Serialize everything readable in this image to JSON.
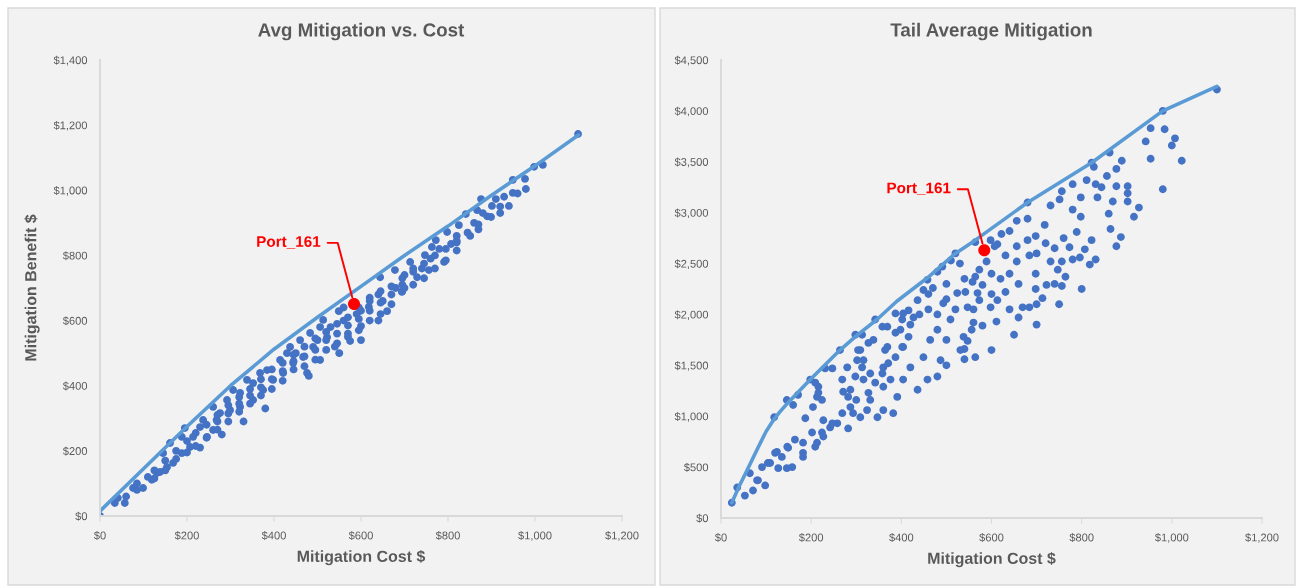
{
  "chart_data": [
    {
      "type": "scatter",
      "title": "Avg Mitigation vs. Cost",
      "xlabel": "Mitigation Cost $",
      "ylabel": "Mitigation Benefit $",
      "xlim": [
        0,
        1200
      ],
      "xticks": [
        {
          "value": 0,
          "label": "$0"
        },
        {
          "value": 200,
          "label": "$200"
        },
        {
          "value": 400,
          "label": "$400"
        },
        {
          "value": 600,
          "label": "$600"
        },
        {
          "value": 800,
          "label": "$800"
        },
        {
          "value": 1000,
          "label": "$1,000"
        },
        {
          "value": 1200,
          "label": "$1,200"
        }
      ],
      "ylim": [
        0,
        1400
      ],
      "yticks": [
        {
          "value": 0,
          "label": "$0"
        },
        {
          "value": 200,
          "label": "$200"
        },
        {
          "value": 400,
          "label": "$400"
        },
        {
          "value": 600,
          "label": "$600"
        },
        {
          "value": 800,
          "label": "$800"
        },
        {
          "value": 1000,
          "label": "$1,000"
        },
        {
          "value": 1200,
          "label": "$1,200"
        },
        {
          "value": 1400,
          "label": "$1,400"
        }
      ],
      "marker": "circle",
      "series": [
        {
          "type": "scatter",
          "color": "#4472c4",
          "x": [
            0,
            34,
            41,
            57,
            76,
            99,
            119,
            131,
            138,
            145,
            154,
            161,
            168,
            188,
            188,
            195,
            207,
            214,
            230,
            237,
            246,
            260,
            260,
            268,
            276,
            292,
            299,
            306,
            322,
            322,
            338,
            352,
            352,
            368,
            375,
            384,
            398,
            414,
            421,
            430,
            437,
            444,
            460,
            467,
            476,
            483,
            490,
            506,
            506,
            513,
            522,
            549,
            575,
            600,
            618,
            644,
            660,
            678,
            694,
            713,
            729,
            747,
            756,
            763,
            772,
            791,
            798,
            807,
            825,
            841,
            851,
            867,
            876,
            899,
            901,
            910,
            929,
            940,
            949,
            949,
            977,
            979,
            998,
            1018,
            1099,
            420,
            450,
            470,
            500,
            530,
            540,
            560,
            570,
            600,
            620,
            640,
            650,
            680,
            700,
            720,
            740,
            780,
            820,
            860,
            880,
            600,
            550,
            480,
            380,
            330,
            280,
            230,
            640,
            700,
            760,
            820,
            560,
            590,
            620,
            60,
            85,
            85,
            110,
            125,
            125,
            150,
            150,
            175,
            175,
            200,
            200,
            220,
            220,
            245,
            245,
            270,
            270,
            270,
            295,
            295,
            295,
            320,
            320,
            320,
            345,
            345,
            345,
            370,
            370,
            370,
            395,
            395,
            395,
            420,
            420,
            445,
            445,
            445,
            470,
            470,
            495,
            495,
            495,
            520,
            520,
            520,
            545,
            545,
            545,
            570,
            570,
            570,
            595,
            595,
            595,
            620,
            620,
            645,
            645,
            645,
            670,
            670,
            670,
            695,
            695,
            695,
            720,
            720,
            745,
            745,
            770,
            770,
            795,
            795,
            820,
            820,
            845,
            870,
            870,
            890,
            920,
            920,
            960
          ],
          "values": [
            0,
            40,
            55,
            40,
            86,
            86,
            111,
            132,
            135,
            193,
            150,
            224,
            163,
            193,
            243,
            270,
            212,
            243,
            273,
            295,
            243,
            264,
            335,
            295,
            316,
            356,
            325,
            387,
            335,
            378,
            418,
            408,
            356,
            439,
            387,
            448,
            418,
            479,
            439,
            500,
            519,
            470,
            540,
            488,
            439,
            562,
            519,
            580,
            479,
            602,
            549,
            629,
            537,
            583,
            642,
            733,
            629,
            755,
            688,
            780,
            733,
            801,
            755,
            826,
            847,
            780,
            872,
            835,
            893,
            927,
            860,
            939,
            973,
            918,
            952,
            973,
            980,
            952,
            1032,
            992,
            1035,
            1004,
            1072,
            1078,
            1173,
            470,
            500,
            520,
            540,
            580,
            520,
            600,
            560,
            630,
            600,
            680,
            660,
            700,
            740,
            760,
            760,
            820,
            860,
            900,
            930,
            540,
            500,
            430,
            330,
            290,
            250,
            210,
            600,
            700,
            790,
            840,
            640,
            620,
            670,
            60,
            80,
            100,
            120,
            140,
            115,
            170,
            140,
            200,
            175,
            230,
            195,
            255,
            215,
            280,
            240,
            310,
            265,
            290,
            340,
            290,
            315,
            365,
            320,
            345,
            390,
            345,
            370,
            420,
            370,
            395,
            450,
            390,
            420,
            415,
            445,
            495,
            450,
            475,
            460,
            490,
            545,
            480,
            510,
            565,
            510,
            540,
            590,
            530,
            560,
            610,
            550,
            585,
            640,
            570,
            605,
            660,
            630,
            690,
            620,
            655,
            705,
            650,
            680,
            730,
            690,
            710,
            750,
            710,
            775,
            730,
            800,
            760,
            820,
            785,
            845,
            815,
            870,
            895,
            880,
            920,
            950,
            930,
            990
          ]
        },
        {
          "type": "line",
          "color": "#5b9bd5",
          "marker": "none",
          "line_style": "solid",
          "x": [
            0,
            100,
            200,
            300,
            400,
            500,
            600,
            700,
            800,
            900,
            1000,
            1100
          ],
          "values": [
            15,
            145,
            275,
            400,
            512,
            610,
            705,
            800,
            890,
            985,
            1075,
            1170
          ]
        },
        {
          "type": "scatter",
          "color": "#ff0000",
          "x": [
            584
          ],
          "values": [
            651
          ]
        }
      ],
      "annotations": [
        {
          "text": "Port_161",
          "x": 584,
          "y": 651
        }
      ]
    },
    {
      "type": "scatter",
      "title": "Tail Average Mitigation",
      "xlabel": "Mitigation Cost $",
      "xlim": [
        0,
        1200
      ],
      "xticks": [
        {
          "value": 0,
          "label": "$0"
        },
        {
          "value": 200,
          "label": "$200"
        },
        {
          "value": 400,
          "label": "$400"
        },
        {
          "value": 600,
          "label": "$600"
        },
        {
          "value": 800,
          "label": "$800"
        },
        {
          "value": 1000,
          "label": "$1,000"
        },
        {
          "value": 1200,
          "label": "$1,200"
        }
      ],
      "ylim": [
        0,
        4500
      ],
      "yticks": [
        {
          "value": 0,
          "label": "$0"
        },
        {
          "value": 500,
          "label": "$500"
        },
        {
          "value": 1000,
          "label": "$1,000"
        },
        {
          "value": 1500,
          "label": "$1,500"
        },
        {
          "value": 2000,
          "label": "$2,000"
        },
        {
          "value": 2500,
          "label": "$2,500"
        },
        {
          "value": 3000,
          "label": "$3,000"
        },
        {
          "value": 3500,
          "label": "$3,500"
        },
        {
          "value": 4000,
          "label": "$4,000"
        },
        {
          "value": 4500,
          "label": "$4,500"
        }
      ],
      "marker": "circle",
      "series": [
        {
          "type": "scatter",
          "color": "#4472c4",
          "x": [
            980,
            1022,
            1007,
            1000,
            953,
            942,
            953,
            984,
            927,
            916,
            902,
            902,
            902,
            887,
            877,
            864,
            860,
            869,
            877,
            877,
            889,
            862,
            856,
            844,
            835,
            831,
            827,
            831,
            818,
            822,
            807,
            796,
            780,
            764,
            756,
            773,
            789,
            798,
            780,
            798,
            780,
            811,
            731,
            756,
            751,
            718,
            698,
            680,
            680,
            656,
            640,
            622,
            613,
            607,
            598,
            713,
            698,
            722,
            747,
            731,
            756,
            684,
            660,
            669,
            640,
            631,
            613,
            598,
            611,
            580,
            556,
            547,
            573,
            580,
            564,
            540,
            656,
            684,
            656,
            698,
            631,
            589,
            573,
            1100,
            980,
            680,
            564,
            822,
            24,
            36,
            53,
            71,
            64,
            80,
            98,
            91,
            104,
            127,
            146,
            158,
            120,
            135,
            149,
            164,
            182,
            182,
            187,
            118,
            146,
            160,
            171,
            198,
            216,
            213,
            224,
            204,
            227,
            202,
            213,
            227,
            242,
            258,
            247,
            264,
            280,
            269,
            271,
            287,
            298,
            313,
            309,
            302,
            316,
            287,
            293,
            282,
            309,
            324,
            331,
            316,
            331,
            338,
            342,
            369,
            369,
            360,
            360,
            376,
            391,
            382,
            360,
            347,
            404,
            420,
            404,
            398,
            404,
            427,
            436,
            449,
            458,
            464,
            449,
            480,
            487,
            480,
            458,
            436,
            493,
            509,
            524,
            547,
            538,
            531,
            560,
            569,
            564,
            520,
            491,
            558,
            542,
            480,
            500,
            530,
            510,
            470,
            500,
            540,
            600,
            650,
            700,
            750,
            800,
            82,
            109,
            124,
            147,
            182,
            209,
            224,
            247,
            269,
            216,
            209,
            231,
            282,
            300,
            327,
            342,
            358,
            371,
            387,
            402,
            416,
            298,
            313,
            304,
            327,
            358,
            387,
            402,
            364,
            387,
            416,
            440,
            460,
            480,
            500,
            520,
            540,
            460,
            420,
            500,
            560,
            600,
            620,
            600,
            640,
            660,
            700,
            720,
            740,
            760,
            700,
            740
          ],
          "values": [
            3230,
            3510,
            3730,
            3660,
            3830,
            3700,
            3530,
            3820,
            3050,
            2960,
            3260,
            3190,
            3110,
            2760,
            2670,
            2840,
            2990,
            3110,
            3260,
            3430,
            3510,
            3590,
            3360,
            3250,
            3150,
            3280,
            3450,
            2540,
            2490,
            2730,
            2640,
            2560,
            2540,
            2370,
            2280,
            2660,
            2810,
            2960,
            3030,
            3150,
            3280,
            3320,
            3070,
            3210,
            3130,
            2880,
            2770,
            2730,
            2940,
            2920,
            2820,
            2790,
            2690,
            2670,
            2730,
            2160,
            2250,
            2290,
            2440,
            2520,
            2520,
            2070,
            1970,
            2070,
            2050,
            2220,
            2140,
            2070,
            1930,
            1890,
            1850,
            1740,
            2140,
            2290,
            2370,
            1660,
            2520,
            2580,
            2670,
            2400,
            2580,
            2520,
            2440,
            4210,
            4000,
            3100,
            2710,
            3490,
            150,
            300,
            220,
            270,
            440,
            370,
            320,
            500,
            540,
            490,
            490,
            500,
            640,
            600,
            690,
            770,
            740,
            600,
            980,
            990,
            1160,
            1110,
            1210,
            1360,
            1290,
            1190,
            1160,
            1090,
            960,
            840,
            740,
            800,
            890,
            930,
            1470,
            1650,
            1480,
            1360,
            1240,
            1260,
            1800,
            1800,
            1650,
            1550,
            1550,
            1090,
            1030,
            880,
            990,
            1060,
            1160,
            1360,
            1420,
            1750,
            1950,
            1880,
            1680,
            1480,
            1290,
            1360,
            1190,
            1030,
            1060,
            990,
            1360,
            1480,
            1680,
            1850,
            2010,
            1970,
            2140,
            2240,
            2340,
            1750,
            1580,
            1850,
            1550,
            1390,
            1360,
            1260,
            2110,
            1950,
            2210,
            2070,
            1780,
            1650,
            1920,
            2210,
            1580,
            2600,
            2470,
            2320,
            2220,
            2420,
            2300,
            2500,
            2530,
            2260,
            1500,
            1560,
            1650,
            1800,
            1900,
            2100,
            2250,
            370,
            540,
            650,
            700,
            640,
            700,
            840,
            930,
            1030,
            1230,
            1330,
            1470,
            1190,
            1160,
            1230,
            1330,
            1420,
            1520,
            1580,
            1680,
            1780,
            1390,
            1480,
            1650,
            1720,
            1880,
            1820,
            1950,
            1650,
            2010,
            2040,
            2000,
            2050,
            2000,
            2150,
            2050,
            2350,
            2200,
            1900,
            1750,
            2050,
            2400,
            2350,
            2200,
            2400,
            2300,
            2600,
            2700,
            2650,
            2750,
            2100,
            2300
          ]
        },
        {
          "type": "line",
          "color": "#5b9bd5",
          "marker": "none",
          "line_style": "solid",
          "x": [
            24,
            40,
            58,
            82,
            100,
            116,
            130,
            146,
            198,
            264,
            300,
            346,
            390,
            458,
            520,
            564,
            680,
            822,
            980,
            1100
          ],
          "values": [
            150,
            310,
            470,
            690,
            850,
            960,
            1040,
            1120,
            1360,
            1650,
            1790,
            1950,
            2130,
            2360,
            2600,
            2730,
            3100,
            3490,
            4000,
            4240
          ]
        },
        {
          "type": "scatter",
          "color": "#ff0000",
          "x": [
            584
          ],
          "values": [
            2630
          ]
        }
      ],
      "annotations": [
        {
          "text": "Port_161",
          "x": 584,
          "y": 2630
        }
      ]
    }
  ]
}
